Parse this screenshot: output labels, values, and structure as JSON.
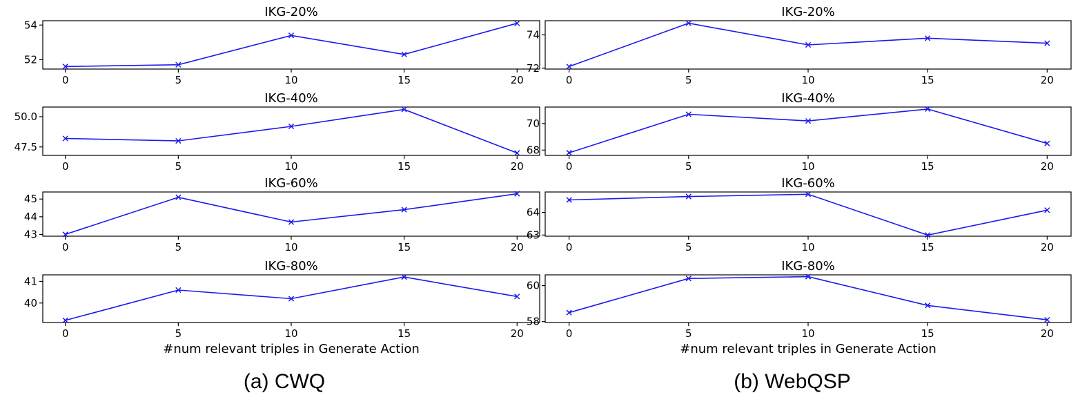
{
  "captions": [
    "(a)  CWQ",
    "(b)  WebQSP"
  ],
  "colors": {
    "series": "#1a1aee",
    "axis": "#000000"
  },
  "chart_data": [
    {
      "type": "line",
      "group": "CWQ",
      "title": "IKG-20%",
      "x": [
        0,
        5,
        10,
        15,
        20
      ],
      "values": [
        51.6,
        51.7,
        53.4,
        52.3,
        54.1
      ],
      "xlim": [
        -1,
        21
      ],
      "ylim": [
        51.45,
        54.25
      ],
      "xticks": [
        0,
        5,
        10,
        15,
        20
      ],
      "yticks": [
        52,
        54
      ],
      "ytick_labels": [
        "52",
        "54"
      ],
      "xlabel": "",
      "marker": "x",
      "grid": false
    },
    {
      "type": "line",
      "group": "CWQ",
      "title": "IKG-40%",
      "x": [
        0,
        5,
        10,
        15,
        20
      ],
      "values": [
        48.2,
        48.0,
        49.2,
        50.6,
        47.0
      ],
      "xlim": [
        -1,
        21
      ],
      "ylim": [
        46.8,
        50.8
      ],
      "xticks": [
        0,
        5,
        10,
        15,
        20
      ],
      "yticks": [
        47.5,
        50.0
      ],
      "ytick_labels": [
        "47.5",
        "50.0"
      ],
      "xlabel": "",
      "marker": "x",
      "grid": false
    },
    {
      "type": "line",
      "group": "CWQ",
      "title": "IKG-60%",
      "x": [
        0,
        5,
        10,
        15,
        20
      ],
      "values": [
        43.0,
        45.1,
        43.7,
        44.4,
        45.3
      ],
      "xlim": [
        -1,
        21
      ],
      "ylim": [
        42.9,
        45.4
      ],
      "xticks": [
        0,
        5,
        10,
        15,
        20
      ],
      "yticks": [
        43,
        44,
        45
      ],
      "ytick_labels": [
        "43",
        "44",
        "45"
      ],
      "xlabel": "",
      "marker": "x",
      "grid": false
    },
    {
      "type": "line",
      "group": "CWQ",
      "title": "IKG-80%",
      "x": [
        0,
        5,
        10,
        15,
        20
      ],
      "values": [
        39.2,
        40.6,
        40.2,
        41.2,
        40.3
      ],
      "xlim": [
        -1,
        21
      ],
      "ylim": [
        39.1,
        41.3
      ],
      "xticks": [
        0,
        5,
        10,
        15,
        20
      ],
      "yticks": [
        40,
        41
      ],
      "ytick_labels": [
        "40",
        "41"
      ],
      "xlabel": "#num relevant triples in Generate Action",
      "marker": "x",
      "grid": false
    },
    {
      "type": "line",
      "group": "WebQSP",
      "title": "IKG-20%",
      "x": [
        0,
        5,
        10,
        15,
        20
      ],
      "values": [
        72.1,
        74.7,
        73.4,
        73.8,
        73.5
      ],
      "xlim": [
        -1,
        21
      ],
      "ylim": [
        71.95,
        74.85
      ],
      "xticks": [
        0,
        5,
        10,
        15,
        20
      ],
      "yticks": [
        72,
        74
      ],
      "ytick_labels": [
        "72",
        "74"
      ],
      "xlabel": "",
      "marker": "x",
      "grid": false
    },
    {
      "type": "line",
      "group": "WebQSP",
      "title": "IKG-40%",
      "x": [
        0,
        5,
        10,
        15,
        20
      ],
      "values": [
        67.8,
        70.7,
        70.2,
        71.1,
        68.5
      ],
      "xlim": [
        -1,
        21
      ],
      "ylim": [
        67.6,
        71.25
      ],
      "xticks": [
        0,
        5,
        10,
        15,
        20
      ],
      "yticks": [
        68,
        70
      ],
      "ytick_labels": [
        "68",
        "70"
      ],
      "xlabel": "",
      "marker": "x",
      "grid": false
    },
    {
      "type": "line",
      "group": "WebQSP",
      "title": "IKG-60%",
      "x": [
        0,
        5,
        10,
        15,
        20
      ],
      "values": [
        64.55,
        64.7,
        64.8,
        63.0,
        64.1
      ],
      "xlim": [
        -1,
        21
      ],
      "ylim": [
        62.95,
        64.9
      ],
      "xticks": [
        0,
        5,
        10,
        15,
        20
      ],
      "yticks": [
        63,
        64
      ],
      "ytick_labels": [
        "63",
        "64"
      ],
      "xlabel": "",
      "marker": "x",
      "grid": false
    },
    {
      "type": "line",
      "group": "WebQSP",
      "title": "IKG-80%",
      "x": [
        0,
        5,
        10,
        15,
        20
      ],
      "values": [
        58.5,
        60.4,
        60.5,
        58.9,
        58.1
      ],
      "xlim": [
        -1,
        21
      ],
      "ylim": [
        57.95,
        60.6
      ],
      "xticks": [
        0,
        5,
        10,
        15,
        20
      ],
      "yticks": [
        58,
        60
      ],
      "ytick_labels": [
        "58",
        "60"
      ],
      "xlabel": "#num relevant triples in Generate Action",
      "marker": "x",
      "grid": false
    }
  ]
}
